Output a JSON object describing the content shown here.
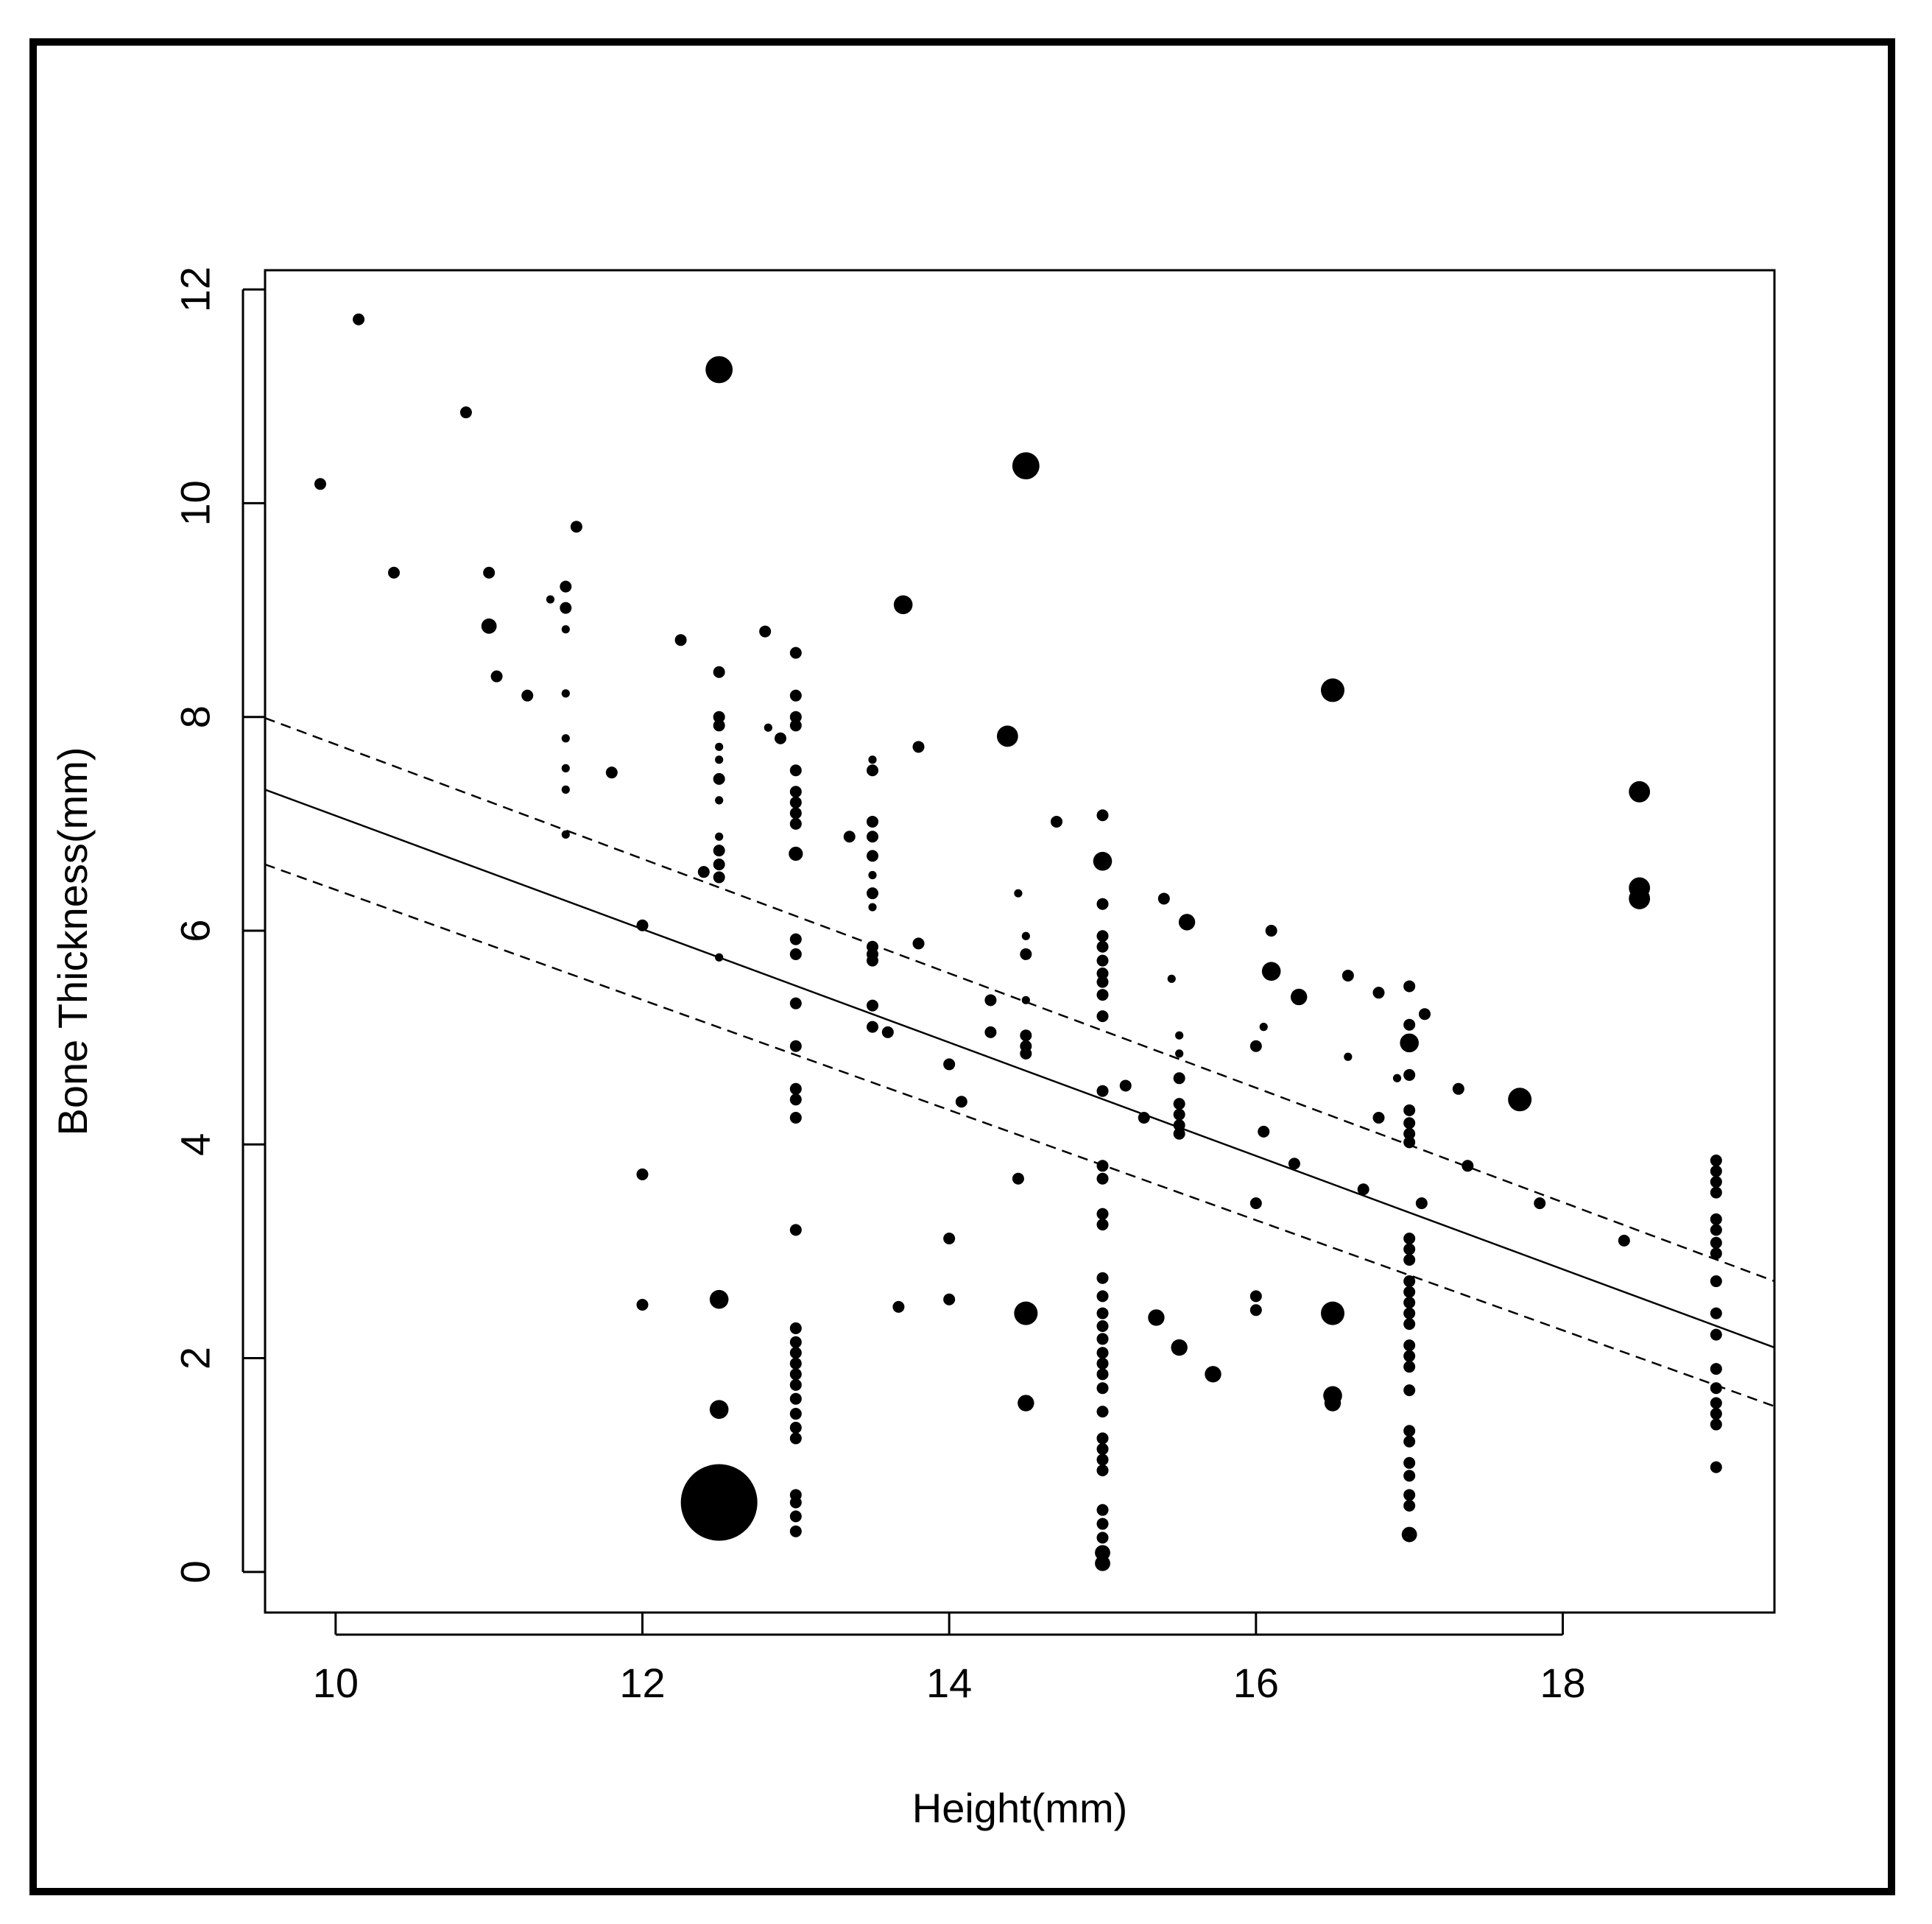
{
  "chart_data": {
    "type": "scatter",
    "xlabel": "Height(mm)",
    "ylabel": "Bone Thickness(mm)",
    "xlim": [
      9.54,
      19.38
    ],
    "ylim": [
      -0.38,
      12.18
    ],
    "xticks": [
      10,
      12,
      14,
      16,
      18
    ],
    "yticks": [
      0,
      2,
      4,
      6,
      8,
      10,
      12
    ],
    "colors": {
      "points": "#000000",
      "lines": "#000000"
    },
    "points": [
      {
        "x": 9.9,
        "y": 10.18,
        "w": 1
      },
      {
        "x": 10.15,
        "y": 11.72,
        "w": 1
      },
      {
        "x": 10.38,
        "y": 9.35,
        "w": 1
      },
      {
        "x": 10.85,
        "y": 10.85,
        "w": 1
      },
      {
        "x": 11.0,
        "y": 9.35,
        "w": 1
      },
      {
        "x": 11.0,
        "y": 8.85,
        "w": 1.3
      },
      {
        "x": 11.05,
        "y": 8.38,
        "w": 1
      },
      {
        "x": 11.25,
        "y": 8.2,
        "w": 1
      },
      {
        "x": 11.4,
        "y": 9.1,
        "w": 0.7
      },
      {
        "x": 11.5,
        "y": 9.22,
        "w": 1
      },
      {
        "x": 11.5,
        "y": 9.02,
        "w": 1
      },
      {
        "x": 11.5,
        "y": 8.82,
        "w": 0.7
      },
      {
        "x": 11.5,
        "y": 8.22,
        "w": 0.7
      },
      {
        "x": 11.5,
        "y": 7.8,
        "w": 0.7
      },
      {
        "x": 11.5,
        "y": 7.52,
        "w": 0.7
      },
      {
        "x": 11.5,
        "y": 7.32,
        "w": 0.7
      },
      {
        "x": 11.5,
        "y": 6.9,
        "w": 0.7
      },
      {
        "x": 11.57,
        "y": 9.78,
        "w": 1
      },
      {
        "x": 11.8,
        "y": 7.48,
        "w": 1
      },
      {
        "x": 12.0,
        "y": 6.05,
        "w": 1
      },
      {
        "x": 12.0,
        "y": 3.72,
        "w": 1
      },
      {
        "x": 12.0,
        "y": 2.5,
        "w": 1
      },
      {
        "x": 12.25,
        "y": 8.72,
        "w": 1
      },
      {
        "x": 12.4,
        "y": 6.55,
        "w": 1
      },
      {
        "x": 12.5,
        "y": 11.25,
        "w": 2.3
      },
      {
        "x": 12.5,
        "y": 8.42,
        "w": 1
      },
      {
        "x": 12.5,
        "y": 8.0,
        "w": 1
      },
      {
        "x": 12.5,
        "y": 7.92,
        "w": 1
      },
      {
        "x": 12.5,
        "y": 7.72,
        "w": 0.7
      },
      {
        "x": 12.5,
        "y": 7.6,
        "w": 0.7
      },
      {
        "x": 12.5,
        "y": 7.42,
        "w": 1
      },
      {
        "x": 12.5,
        "y": 7.22,
        "w": 0.7
      },
      {
        "x": 12.5,
        "y": 6.88,
        "w": 0.7
      },
      {
        "x": 12.5,
        "y": 6.75,
        "w": 1
      },
      {
        "x": 12.5,
        "y": 6.62,
        "w": 1
      },
      {
        "x": 12.5,
        "y": 6.5,
        "w": 1
      },
      {
        "x": 12.5,
        "y": 5.75,
        "w": 0.7
      },
      {
        "x": 12.5,
        "y": 2.55,
        "w": 1.6
      },
      {
        "x": 12.5,
        "y": 1.52,
        "w": 1.6
      },
      {
        "x": 12.5,
        "y": 0.65,
        "w": 6.5
      },
      {
        "x": 12.8,
        "y": 8.8,
        "w": 1
      },
      {
        "x": 12.82,
        "y": 7.9,
        "w": 0.7
      },
      {
        "x": 12.9,
        "y": 7.8,
        "w": 1
      },
      {
        "x": 13.0,
        "y": 8.6,
        "w": 1
      },
      {
        "x": 13.0,
        "y": 8.2,
        "w": 1
      },
      {
        "x": 13.0,
        "y": 8.0,
        "w": 1
      },
      {
        "x": 13.0,
        "y": 7.92,
        "w": 1
      },
      {
        "x": 13.0,
        "y": 7.5,
        "w": 1
      },
      {
        "x": 13.0,
        "y": 7.3,
        "w": 1
      },
      {
        "x": 13.0,
        "y": 7.2,
        "w": 1
      },
      {
        "x": 13.0,
        "y": 7.1,
        "w": 1
      },
      {
        "x": 13.0,
        "y": 7.0,
        "w": 1
      },
      {
        "x": 13.0,
        "y": 6.72,
        "w": 1.2
      },
      {
        "x": 13.0,
        "y": 5.92,
        "w": 1
      },
      {
        "x": 13.0,
        "y": 5.78,
        "w": 1
      },
      {
        "x": 13.0,
        "y": 5.32,
        "w": 1
      },
      {
        "x": 13.0,
        "y": 4.92,
        "w": 1
      },
      {
        "x": 13.0,
        "y": 4.52,
        "w": 1
      },
      {
        "x": 13.0,
        "y": 4.42,
        "w": 1
      },
      {
        "x": 13.0,
        "y": 4.25,
        "w": 1
      },
      {
        "x": 13.0,
        "y": 3.2,
        "w": 1
      },
      {
        "x": 13.0,
        "y": 2.28,
        "w": 1
      },
      {
        "x": 13.0,
        "y": 2.15,
        "w": 1
      },
      {
        "x": 13.0,
        "y": 2.05,
        "w": 1
      },
      {
        "x": 13.0,
        "y": 1.95,
        "w": 1
      },
      {
        "x": 13.0,
        "y": 1.85,
        "w": 1
      },
      {
        "x": 13.0,
        "y": 1.75,
        "w": 1
      },
      {
        "x": 13.0,
        "y": 1.62,
        "w": 1
      },
      {
        "x": 13.0,
        "y": 1.48,
        "w": 1
      },
      {
        "x": 13.0,
        "y": 1.35,
        "w": 1
      },
      {
        "x": 13.0,
        "y": 1.25,
        "w": 1
      },
      {
        "x": 13.0,
        "y": 0.72,
        "w": 1
      },
      {
        "x": 13.0,
        "y": 0.65,
        "w": 1
      },
      {
        "x": 13.0,
        "y": 0.52,
        "w": 1
      },
      {
        "x": 13.0,
        "y": 0.38,
        "w": 1
      },
      {
        "x": 13.35,
        "y": 6.88,
        "w": 1
      },
      {
        "x": 13.5,
        "y": 7.6,
        "w": 0.7
      },
      {
        "x": 13.5,
        "y": 7.5,
        "w": 1
      },
      {
        "x": 13.5,
        "y": 7.02,
        "w": 1
      },
      {
        "x": 13.5,
        "y": 6.88,
        "w": 1
      },
      {
        "x": 13.5,
        "y": 6.7,
        "w": 1
      },
      {
        "x": 13.5,
        "y": 6.52,
        "w": 0.7
      },
      {
        "x": 13.5,
        "y": 6.35,
        "w": 1
      },
      {
        "x": 13.5,
        "y": 6.22,
        "w": 0.7
      },
      {
        "x": 13.5,
        "y": 5.85,
        "w": 1
      },
      {
        "x": 13.5,
        "y": 5.78,
        "w": 1
      },
      {
        "x": 13.5,
        "y": 5.72,
        "w": 1
      },
      {
        "x": 13.5,
        "y": 5.3,
        "w": 1
      },
      {
        "x": 13.5,
        "y": 5.1,
        "w": 1
      },
      {
        "x": 13.6,
        "y": 5.05,
        "w": 1
      },
      {
        "x": 13.67,
        "y": 2.48,
        "w": 1
      },
      {
        "x": 13.7,
        "y": 9.05,
        "w": 1.6
      },
      {
        "x": 13.8,
        "y": 7.72,
        "w": 1
      },
      {
        "x": 13.8,
        "y": 5.88,
        "w": 1
      },
      {
        "x": 14.0,
        "y": 4.75,
        "w": 1
      },
      {
        "x": 14.0,
        "y": 3.12,
        "w": 1
      },
      {
        "x": 14.0,
        "y": 2.55,
        "w": 1
      },
      {
        "x": 14.08,
        "y": 4.4,
        "w": 1
      },
      {
        "x": 14.27,
        "y": 5.35,
        "w": 1
      },
      {
        "x": 14.27,
        "y": 5.05,
        "w": 1
      },
      {
        "x": 14.38,
        "y": 7.82,
        "w": 1.8
      },
      {
        "x": 14.45,
        "y": 3.68,
        "w": 1
      },
      {
        "x": 14.45,
        "y": 6.35,
        "w": 0.7
      },
      {
        "x": 14.5,
        "y": 10.35,
        "w": 2.3
      },
      {
        "x": 14.5,
        "y": 5.95,
        "w": 0.7
      },
      {
        "x": 14.5,
        "y": 5.78,
        "w": 1
      },
      {
        "x": 14.5,
        "y": 5.35,
        "w": 0.7
      },
      {
        "x": 14.5,
        "y": 5.02,
        "w": 1
      },
      {
        "x": 14.5,
        "y": 4.92,
        "w": 1
      },
      {
        "x": 14.5,
        "y": 4.85,
        "w": 1
      },
      {
        "x": 14.5,
        "y": 2.42,
        "w": 2.0
      },
      {
        "x": 14.5,
        "y": 1.58,
        "w": 1.4
      },
      {
        "x": 14.7,
        "y": 7.02,
        "w": 1
      },
      {
        "x": 15.0,
        "y": 7.08,
        "w": 1
      },
      {
        "x": 15.0,
        "y": 6.65,
        "w": 1.6
      },
      {
        "x": 15.0,
        "y": 6.25,
        "w": 1
      },
      {
        "x": 15.0,
        "y": 5.95,
        "w": 1
      },
      {
        "x": 15.0,
        "y": 5.85,
        "w": 1
      },
      {
        "x": 15.0,
        "y": 5.72,
        "w": 1
      },
      {
        "x": 15.0,
        "y": 5.6,
        "w": 1
      },
      {
        "x": 15.0,
        "y": 5.52,
        "w": 1
      },
      {
        "x": 15.0,
        "y": 5.4,
        "w": 1
      },
      {
        "x": 15.0,
        "y": 5.2,
        "w": 1
      },
      {
        "x": 15.0,
        "y": 4.5,
        "w": 1
      },
      {
        "x": 15.0,
        "y": 3.8,
        "w": 1
      },
      {
        "x": 15.0,
        "y": 3.68,
        "w": 1
      },
      {
        "x": 15.0,
        "y": 3.35,
        "w": 1
      },
      {
        "x": 15.0,
        "y": 3.25,
        "w": 1
      },
      {
        "x": 15.0,
        "y": 2.75,
        "w": 1
      },
      {
        "x": 15.0,
        "y": 2.58,
        "w": 1
      },
      {
        "x": 15.0,
        "y": 2.42,
        "w": 1
      },
      {
        "x": 15.0,
        "y": 2.3,
        "w": 1
      },
      {
        "x": 15.0,
        "y": 2.18,
        "w": 1
      },
      {
        "x": 15.0,
        "y": 2.05,
        "w": 1
      },
      {
        "x": 15.0,
        "y": 1.95,
        "w": 1
      },
      {
        "x": 15.0,
        "y": 1.85,
        "w": 1
      },
      {
        "x": 15.0,
        "y": 1.72,
        "w": 1
      },
      {
        "x": 15.0,
        "y": 1.5,
        "w": 1
      },
      {
        "x": 15.0,
        "y": 1.25,
        "w": 1
      },
      {
        "x": 15.0,
        "y": 1.15,
        "w": 1
      },
      {
        "x": 15.0,
        "y": 1.05,
        "w": 1
      },
      {
        "x": 15.0,
        "y": 0.95,
        "w": 1
      },
      {
        "x": 15.0,
        "y": 0.58,
        "w": 1
      },
      {
        "x": 15.0,
        "y": 0.45,
        "w": 1
      },
      {
        "x": 15.0,
        "y": 0.32,
        "w": 1
      },
      {
        "x": 15.0,
        "y": 0.18,
        "w": 1.3
      },
      {
        "x": 15.0,
        "y": 0.08,
        "w": 1.3
      },
      {
        "x": 15.15,
        "y": 4.55,
        "w": 1
      },
      {
        "x": 15.27,
        "y": 4.25,
        "w": 1
      },
      {
        "x": 15.35,
        "y": 2.38,
        "w": 1.4
      },
      {
        "x": 15.4,
        "y": 6.3,
        "w": 1
      },
      {
        "x": 15.45,
        "y": 5.55,
        "w": 0.7
      },
      {
        "x": 15.5,
        "y": 5.02,
        "w": 0.7
      },
      {
        "x": 15.5,
        "y": 4.85,
        "w": 0.7
      },
      {
        "x": 15.5,
        "y": 4.62,
        "w": 1
      },
      {
        "x": 15.5,
        "y": 4.38,
        "w": 1
      },
      {
        "x": 15.5,
        "y": 4.28,
        "w": 1
      },
      {
        "x": 15.5,
        "y": 4.18,
        "w": 1
      },
      {
        "x": 15.5,
        "y": 4.1,
        "w": 1
      },
      {
        "x": 15.5,
        "y": 2.1,
        "w": 1.4
      },
      {
        "x": 15.55,
        "y": 6.08,
        "w": 1.4
      },
      {
        "x": 15.72,
        "y": 1.85,
        "w": 1.4
      },
      {
        "x": 16.0,
        "y": 4.92,
        "w": 1
      },
      {
        "x": 16.0,
        "y": 3.45,
        "w": 1
      },
      {
        "x": 16.0,
        "y": 2.58,
        "w": 1
      },
      {
        "x": 16.0,
        "y": 2.45,
        "w": 1
      },
      {
        "x": 16.05,
        "y": 5.1,
        "w": 0.7
      },
      {
        "x": 16.05,
        "y": 4.12,
        "w": 1
      },
      {
        "x": 16.1,
        "y": 6.0,
        "w": 1
      },
      {
        "x": 16.1,
        "y": 5.62,
        "w": 1.6
      },
      {
        "x": 16.25,
        "y": 3.82,
        "w": 1
      },
      {
        "x": 16.28,
        "y": 5.38,
        "w": 1.4
      },
      {
        "x": 16.5,
        "y": 8.25,
        "w": 2.0
      },
      {
        "x": 16.5,
        "y": 2.42,
        "w": 2.0
      },
      {
        "x": 16.5,
        "y": 1.65,
        "w": 1.6
      },
      {
        "x": 16.5,
        "y": 1.58,
        "w": 1.4
      },
      {
        "x": 16.6,
        "y": 5.58,
        "w": 1
      },
      {
        "x": 16.6,
        "y": 4.82,
        "w": 0.7
      },
      {
        "x": 16.7,
        "y": 3.58,
        "w": 1
      },
      {
        "x": 16.8,
        "y": 5.42,
        "w": 1
      },
      {
        "x": 16.8,
        "y": 4.25,
        "w": 1
      },
      {
        "x": 16.92,
        "y": 4.62,
        "w": 0.7
      },
      {
        "x": 17.0,
        "y": 5.48,
        "w": 1
      },
      {
        "x": 17.0,
        "y": 5.12,
        "w": 1
      },
      {
        "x": 17.0,
        "y": 4.95,
        "w": 1.6
      },
      {
        "x": 17.0,
        "y": 4.65,
        "w": 1
      },
      {
        "x": 17.0,
        "y": 4.32,
        "w": 1
      },
      {
        "x": 17.0,
        "y": 4.2,
        "w": 1
      },
      {
        "x": 17.0,
        "y": 4.1,
        "w": 1
      },
      {
        "x": 17.0,
        "y": 4.02,
        "w": 1
      },
      {
        "x": 17.0,
        "y": 3.12,
        "w": 1
      },
      {
        "x": 17.0,
        "y": 3.02,
        "w": 1
      },
      {
        "x": 17.0,
        "y": 2.92,
        "w": 1
      },
      {
        "x": 17.0,
        "y": 2.72,
        "w": 1
      },
      {
        "x": 17.0,
        "y": 2.62,
        "w": 1
      },
      {
        "x": 17.0,
        "y": 2.52,
        "w": 1
      },
      {
        "x": 17.0,
        "y": 2.42,
        "w": 1
      },
      {
        "x": 17.0,
        "y": 2.32,
        "w": 1
      },
      {
        "x": 17.0,
        "y": 2.12,
        "w": 1
      },
      {
        "x": 17.0,
        "y": 2.02,
        "w": 1
      },
      {
        "x": 17.0,
        "y": 1.92,
        "w": 1
      },
      {
        "x": 17.0,
        "y": 1.7,
        "w": 1
      },
      {
        "x": 17.0,
        "y": 1.32,
        "w": 1
      },
      {
        "x": 17.0,
        "y": 1.22,
        "w": 1
      },
      {
        "x": 17.0,
        "y": 1.02,
        "w": 1
      },
      {
        "x": 17.0,
        "y": 0.9,
        "w": 1
      },
      {
        "x": 17.0,
        "y": 0.72,
        "w": 1
      },
      {
        "x": 17.0,
        "y": 0.62,
        "w": 1
      },
      {
        "x": 17.0,
        "y": 0.35,
        "w": 1.3
      },
      {
        "x": 17.08,
        "y": 3.45,
        "w": 1
      },
      {
        "x": 17.1,
        "y": 5.22,
        "w": 1
      },
      {
        "x": 17.32,
        "y": 4.52,
        "w": 1
      },
      {
        "x": 17.38,
        "y": 3.8,
        "w": 1
      },
      {
        "x": 17.72,
        "y": 4.42,
        "w": 2.0
      },
      {
        "x": 17.85,
        "y": 3.45,
        "w": 1
      },
      {
        "x": 18.4,
        "y": 3.1,
        "w": 1
      },
      {
        "x": 18.5,
        "y": 7.3,
        "w": 1.8
      },
      {
        "x": 18.5,
        "y": 6.4,
        "w": 1.8
      },
      {
        "x": 18.5,
        "y": 6.3,
        "w": 1.8
      },
      {
        "x": 19.0,
        "y": 3.85,
        "w": 1
      },
      {
        "x": 19.0,
        "y": 3.75,
        "w": 1
      },
      {
        "x": 19.0,
        "y": 3.65,
        "w": 1
      },
      {
        "x": 19.0,
        "y": 3.55,
        "w": 1
      },
      {
        "x": 19.0,
        "y": 3.3,
        "w": 1
      },
      {
        "x": 19.0,
        "y": 3.2,
        "w": 1
      },
      {
        "x": 19.0,
        "y": 3.08,
        "w": 1
      },
      {
        "x": 19.0,
        "y": 2.98,
        "w": 1
      },
      {
        "x": 19.0,
        "y": 2.72,
        "w": 1
      },
      {
        "x": 19.0,
        "y": 2.42,
        "w": 1
      },
      {
        "x": 19.0,
        "y": 2.22,
        "w": 1
      },
      {
        "x": 19.0,
        "y": 1.9,
        "w": 1
      },
      {
        "x": 19.0,
        "y": 1.72,
        "w": 1
      },
      {
        "x": 19.0,
        "y": 1.58,
        "w": 1
      },
      {
        "x": 19.0,
        "y": 1.48,
        "w": 1
      },
      {
        "x": 19.0,
        "y": 1.38,
        "w": 1
      },
      {
        "x": 19.0,
        "y": 0.98,
        "w": 1
      }
    ],
    "fit_line": {
      "x": [
        9.54,
        19.38
      ],
      "y": [
        7.32,
        2.1
      ]
    },
    "confidence_upper": {
      "x": [
        9.54,
        19.38
      ],
      "y": [
        7.99,
        2.72
      ]
    },
    "confidence_lower": {
      "x": [
        9.54,
        19.38
      ],
      "y": [
        6.62,
        1.55
      ]
    },
    "grid": false,
    "legend": "none"
  }
}
